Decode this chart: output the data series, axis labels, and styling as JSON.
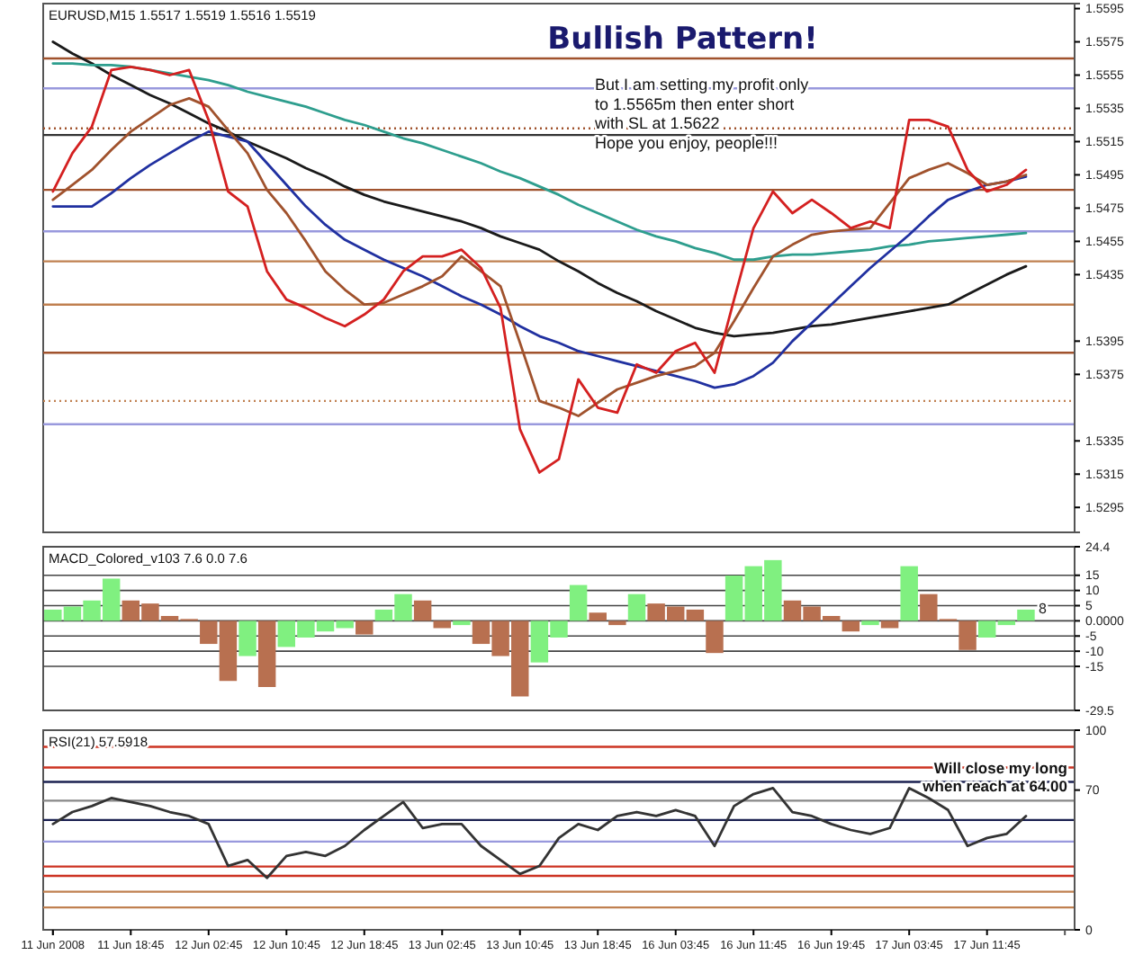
{
  "chart_data": [
    {
      "type": "line",
      "title": "EURUSD,M15  1.5517 1.5519 1.5516 1.5519",
      "annotations": [
        "Bullish Pattern!",
        "But I am setting my profit only\nto 1.5565m then enter short\nwith SL at 1.5622\nHope you enjoy, people!!!"
      ],
      "tick_labels": "y",
      "ylim": [
        1.528,
        1.5598
      ],
      "yticks": [
        1.5295,
        1.5315,
        1.5335,
        1.5375,
        1.5395,
        1.5435,
        1.5455,
        1.5475,
        1.5495,
        1.5515,
        1.5535,
        1.5555,
        1.5575,
        1.5595
      ],
      "categories": [
        null,
        null,
        null,
        null,
        null,
        null,
        null,
        null,
        null,
        null,
        null,
        null,
        null,
        null,
        null,
        null,
        null,
        null,
        null,
        null,
        null,
        null,
        null,
        null,
        null,
        null,
        null,
        null,
        null,
        null,
        null,
        null,
        null,
        null,
        null,
        null,
        null,
        null,
        null,
        null,
        null,
        null,
        null,
        null,
        null,
        null,
        null,
        null,
        null,
        null,
        null,
        null,
        null
      ],
      "ref_lines": [
        {
          "axis": "y",
          "value": 1.5565,
          "color": "#a0522d",
          "line_style": "solid"
        },
        {
          "axis": "y",
          "value": 1.5547,
          "color": "#9999dd",
          "line_style": "solid"
        },
        {
          "axis": "y",
          "value": 1.5523,
          "color": "#a0522d",
          "line_style": "dotted"
        },
        {
          "axis": "y",
          "value": 1.5519,
          "color": "#333333",
          "line_style": "solid"
        },
        {
          "axis": "y",
          "value": 1.5486,
          "color": "#a0522d",
          "line_style": "solid"
        },
        {
          "axis": "y",
          "value": 1.5461,
          "color": "#9999dd",
          "line_style": "solid"
        },
        {
          "axis": "y",
          "value": 1.5443,
          "color": "#c08050",
          "line_style": "solid"
        },
        {
          "axis": "y",
          "value": 1.5417,
          "color": "#c08050",
          "line_style": "solid"
        },
        {
          "axis": "y",
          "value": 1.5388,
          "color": "#a0522d",
          "line_style": "solid"
        },
        {
          "axis": "y",
          "value": 1.5359,
          "color": "#c08050",
          "line_style": "dotted"
        },
        {
          "axis": "y",
          "value": 1.5345,
          "color": "#9999dd",
          "line_style": "solid"
        }
      ],
      "series": [
        {
          "color": "#1a1a1a",
          "values": [
            1.5575,
            1.5568,
            1.5562,
            1.5555,
            1.5549,
            1.5543,
            1.5538,
            1.5532,
            1.5526,
            1.5521,
            1.5515,
            1.551,
            1.5505,
            1.5499,
            1.5494,
            1.5488,
            1.5483,
            1.5479,
            1.5476,
            1.5473,
            1.547,
            1.5467,
            1.5463,
            1.5458,
            1.5454,
            1.545,
            1.5443,
            1.5437,
            1.543,
            1.5424,
            1.5419,
            1.5413,
            1.5408,
            1.5403,
            1.54,
            1.5398,
            1.5399,
            1.54,
            1.5402,
            1.5404,
            1.5405,
            1.5407,
            1.5409,
            1.5411,
            1.5413,
            1.5415,
            1.5417,
            1.5423,
            1.5429,
            1.5435,
            1.544,
            null,
            null
          ]
        },
        {
          "color": "#2e9e8e",
          "values": [
            1.5562,
            1.5562,
            1.5561,
            1.5561,
            1.556,
            1.5558,
            1.5556,
            1.5554,
            1.5552,
            1.5549,
            1.5545,
            1.5542,
            1.5539,
            1.5536,
            1.5532,
            1.5528,
            1.5525,
            1.5521,
            1.5517,
            1.5514,
            1.551,
            1.5506,
            1.5502,
            1.5497,
            1.5493,
            1.5488,
            1.5483,
            1.5477,
            1.5472,
            1.5467,
            1.5462,
            1.5458,
            1.5455,
            1.5451,
            1.5448,
            1.5444,
            1.5444,
            1.5446,
            1.5447,
            1.5447,
            1.5448,
            1.5449,
            1.545,
            1.5452,
            1.5453,
            1.5455,
            1.5456,
            1.5457,
            1.5458,
            1.5459,
            1.546,
            null,
            null
          ]
        },
        {
          "color": "#2030a0",
          "values": [
            1.5476,
            1.5476,
            1.5476,
            1.5484,
            1.5493,
            1.5501,
            1.5508,
            1.5515,
            1.5521,
            1.5518,
            1.5515,
            1.5502,
            1.5489,
            1.5476,
            1.5465,
            1.5456,
            1.545,
            1.5444,
            1.5439,
            1.5434,
            1.5428,
            1.5422,
            1.5417,
            1.5411,
            1.5404,
            1.5398,
            1.5394,
            1.5389,
            1.5386,
            1.5383,
            1.538,
            1.5377,
            1.5374,
            1.5371,
            1.5367,
            1.5369,
            1.5374,
            1.5382,
            1.5395,
            1.5406,
            1.5417,
            1.5428,
            1.5439,
            1.5449,
            1.5459,
            1.547,
            1.548,
            1.5485,
            1.5489,
            1.5491,
            1.5494,
            null,
            null
          ]
        },
        {
          "color": "#a0522d",
          "values": [
            1.548,
            1.5489,
            1.5498,
            1.551,
            1.5521,
            1.5529,
            1.5537,
            1.5541,
            1.5536,
            1.5522,
            1.5508,
            1.5486,
            1.5472,
            1.5455,
            1.5437,
            1.5426,
            1.5417,
            1.5418,
            1.5423,
            1.5428,
            1.5434,
            1.5446,
            1.5437,
            1.5428,
            1.5394,
            1.5359,
            1.5355,
            1.535,
            1.5358,
            1.5366,
            1.537,
            1.5374,
            1.5377,
            1.538,
            1.5388,
            1.5407,
            1.5427,
            1.5446,
            1.5453,
            1.5459,
            1.5461,
            1.5462,
            1.5463,
            1.5478,
            1.5493,
            1.5498,
            1.5502,
            1.5496,
            1.5489,
            1.5491,
            1.5495,
            null,
            null
          ]
        },
        {
          "color": "#d42020",
          "values": [
            1.5485,
            1.5508,
            1.5524,
            1.5558,
            1.556,
            1.5558,
            1.5555,
            1.5558,
            1.5528,
            1.5485,
            1.5476,
            1.5437,
            1.542,
            1.5415,
            1.5409,
            1.5404,
            1.5411,
            1.542,
            1.5437,
            1.5446,
            1.5446,
            1.545,
            1.5439,
            1.5415,
            1.5342,
            1.5316,
            1.5324,
            1.5372,
            1.5355,
            1.5352,
            1.5381,
            1.5376,
            1.5389,
            1.5394,
            1.5376,
            1.542,
            1.5463,
            1.5485,
            1.5472,
            1.548,
            1.5472,
            1.5463,
            1.5467,
            1.5463,
            1.5528,
            1.5528,
            1.5524,
            1.5498,
            1.5485,
            1.5489,
            1.5498,
            null,
            null
          ]
        }
      ]
    },
    {
      "type": "bar",
      "title": "MACD_Colored_v103 7.6 0.0 7.6",
      "tick_labels": "y",
      "grid": "y",
      "ylim": [
        -29.5,
        24.4
      ],
      "yticks": [
        24.4,
        15,
        10,
        5,
        {
          "value": 0,
          "label": "0.0000"
        },
        -5,
        -10,
        -15,
        -29.5
      ],
      "annotations": [
        "8"
      ],
      "categories": [
        null,
        null,
        null,
        null,
        null,
        null,
        null,
        null,
        null,
        null,
        null,
        null,
        null,
        null,
        null,
        null,
        null,
        null,
        null,
        null,
        null,
        null,
        null,
        null,
        null,
        null,
        null,
        null,
        null,
        null,
        null,
        null,
        null,
        null,
        null,
        null,
        null,
        null,
        null,
        null,
        null,
        null,
        null,
        null,
        null,
        null,
        null,
        null,
        null,
        null,
        null,
        null,
        null
      ],
      "series": [
        {
          "values": [
            3.7,
            4.7,
            6.7,
            13.9,
            6.7,
            5.7,
            1.6,
            0.6,
            -7.6,
            -19.8,
            -11.6,
            -21.8,
            -8.6,
            -5.5,
            -3.5,
            -2.4,
            -4.5,
            3.7,
            8.8,
            6.7,
            -2.4,
            -1.4,
            -7.6,
            -11.6,
            -24.9,
            -13.7,
            -5.5,
            11.8,
            2.7,
            -1.4,
            8.8,
            5.7,
            4.7,
            3.7,
            -10.6,
            14.9,
            18,
            20,
            6.7,
            4.7,
            1.6,
            -3.5,
            -1.4,
            -2.4,
            18,
            8.8,
            0.6,
            -9.6,
            -5.5,
            -1.4,
            3.7,
            null,
            null
          ],
          "colors": [
            "#80f080",
            "#80f080",
            "#80f080",
            "#80f080",
            "#b87050",
            "#b87050",
            "#b87050",
            "#b87050",
            "#b87050",
            "#b87050",
            "#80f080",
            "#b87050",
            "#80f080",
            "#80f080",
            "#80f080",
            "#80f080",
            "#b87050",
            "#80f080",
            "#80f080",
            "#b87050",
            "#b87050",
            "#80f080",
            "#b87050",
            "#b87050",
            "#b87050",
            "#80f080",
            "#80f080",
            "#80f080",
            "#b87050",
            "#b87050",
            "#80f080",
            "#b87050",
            "#b87050",
            "#b87050",
            "#b87050",
            "#80f080",
            "#80f080",
            "#80f080",
            "#b87050",
            "#b87050",
            "#b87050",
            "#b87050",
            "#80f080",
            "#b87050",
            "#80f080",
            "#b87050",
            "#b87050",
            "#b87050",
            "#80f080",
            "#80f080",
            "#80f080",
            null,
            null
          ]
        }
      ]
    },
    {
      "type": "line",
      "title": "RSI(21) 57.5918",
      "ylim": [
        0,
        100
      ],
      "yticks": [
        0,
        70,
        100
      ],
      "categories": [
        "11 Jun 2008",
        null,
        null,
        null,
        "11 Jun 18:45",
        null,
        null,
        null,
        "12 Jun 02:45",
        null,
        null,
        null,
        "12 Jun 10:45",
        null,
        null,
        null,
        "12 Jun 18:45",
        null,
        null,
        null,
        "13 Jun 02:45",
        null,
        null,
        null,
        "13 Jun 10:45",
        null,
        null,
        null,
        "13 Jun 18:45",
        null,
        null,
        null,
        "16 Jun 03:45",
        null,
        null,
        null,
        "16 Jun 11:45",
        null,
        null,
        null,
        "16 Jun 19:45",
        null,
        null,
        null,
        "17 Jun 03:45",
        null,
        null,
        null,
        "17 Jun 11:45",
        null,
        null,
        null,
        null
      ],
      "annotations": [
        "Will close my long\nwhen reach at 64.00"
      ],
      "ref_lines": [
        {
          "axis": "y",
          "value": 91.7,
          "color": "#cc3322",
          "line_style": "solid"
        },
        {
          "axis": "y",
          "value": 81.3,
          "color": "#cc3322",
          "line_style": "solid"
        },
        {
          "axis": "y",
          "value": 74.1,
          "color": "#1a2050",
          "line_style": "solid"
        },
        {
          "axis": "y",
          "value": 64.7,
          "color": "#888888",
          "line_style": "solid"
        },
        {
          "axis": "y",
          "value": 55,
          "color": "#1a2050",
          "line_style": "solid"
        },
        {
          "axis": "y",
          "value": 44.2,
          "color": "#9999dd",
          "line_style": "solid"
        },
        {
          "axis": "y",
          "value": 31.7,
          "color": "#cc3322",
          "line_style": "solid"
        },
        {
          "axis": "y",
          "value": 27,
          "color": "#cc3322",
          "line_style": "solid"
        },
        {
          "axis": "y",
          "value": 19.1,
          "color": "#c08050",
          "line_style": "solid"
        },
        {
          "axis": "y",
          "value": 11.2,
          "color": "#c08050",
          "line_style": "solid"
        }
      ],
      "series": [
        {
          "color": "#333333",
          "values": [
            53,
            59,
            62,
            66,
            64,
            62,
            59,
            57,
            53,
            32,
            35,
            26,
            37,
            39,
            37,
            42,
            50,
            57,
            64,
            51,
            53,
            53,
            42,
            35,
            28,
            32,
            46,
            53,
            50,
            57,
            59,
            57,
            60,
            57,
            42,
            62,
            68,
            71,
            59,
            57,
            53,
            50,
            48,
            51,
            71,
            66,
            60,
            42,
            46,
            48,
            57,
            null,
            null
          ]
        }
      ]
    }
  ]
}
